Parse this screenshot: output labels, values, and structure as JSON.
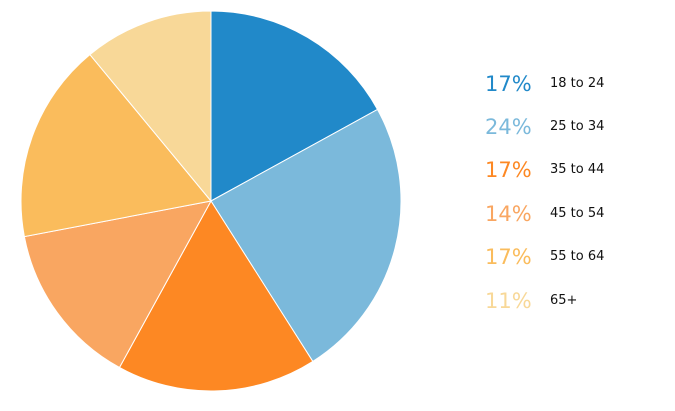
{
  "chart_data": {
    "type": "pie",
    "slices": [
      {
        "label": "18 to 24",
        "value": 17,
        "value_label": "17%",
        "color": "#2189c9"
      },
      {
        "label": "25 to 34",
        "value": 24,
        "value_label": "24%",
        "color": "#7bb9db"
      },
      {
        "label": "35 to 44",
        "value": 17,
        "value_label": "17%",
        "color": "#fd8823"
      },
      {
        "label": "45 to 54",
        "value": 14,
        "value_label": "14%",
        "color": "#f9a661"
      },
      {
        "label": "55 to 64",
        "value": 17,
        "value_label": "17%",
        "color": "#fabc5c"
      },
      {
        "label": "65+",
        "value": 11,
        "value_label": "11%",
        "color": "#f8d898"
      }
    ],
    "legend_position": "right",
    "start_angle": "12 o'clock",
    "direction": "clockwise"
  }
}
